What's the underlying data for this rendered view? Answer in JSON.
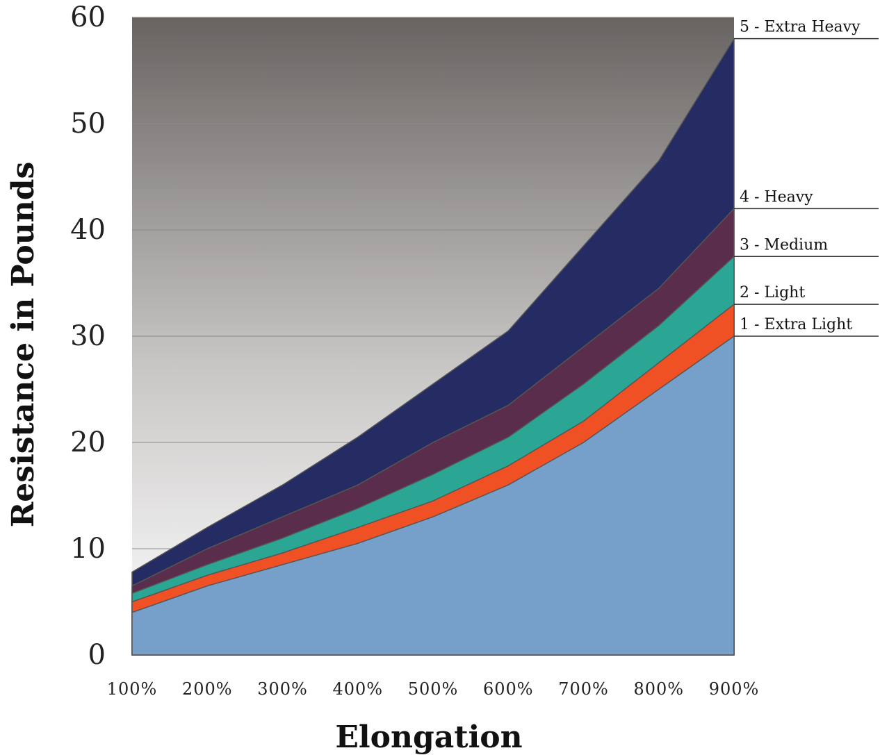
{
  "chart_data": {
    "type": "area",
    "stacked": true,
    "xlabel": "Elongation",
    "ylabel": "Resistance in Pounds",
    "categories": [
      "100%",
      "200%",
      "300%",
      "400%",
      "500%",
      "600%",
      "700%",
      "800%",
      "900%"
    ],
    "ylim": [
      0,
      60
    ],
    "yticks": [
      "0",
      "10",
      "20",
      "30",
      "40",
      "50",
      "60"
    ],
    "grid": true,
    "background": {
      "top": "#686462",
      "bottom": "#ffffff"
    },
    "series": [
      {
        "name": "1 - Extra Light",
        "color": "#769fca",
        "values": [
          4.0,
          6.5,
          8.5,
          10.5,
          13.0,
          16.0,
          20.0,
          25.0,
          30.0
        ]
      },
      {
        "name": "2 - Light",
        "color": "#ef5024",
        "values": [
          5.0,
          7.5,
          9.6,
          12.0,
          14.5,
          17.8,
          22.0,
          27.5,
          33.0
        ]
      },
      {
        "name": "3 - Medium",
        "color": "#2ba695",
        "values": [
          5.8,
          8.5,
          11.0,
          13.8,
          17.0,
          20.5,
          25.5,
          31.0,
          37.5
        ]
      },
      {
        "name": "4 - Heavy",
        "color": "#5b2d4d",
        "values": [
          6.5,
          10.0,
          13.0,
          16.0,
          20.0,
          23.5,
          29.0,
          34.5,
          42.0
        ]
      },
      {
        "name": "5 - Extra Heavy",
        "color": "#252b63",
        "values": [
          7.8,
          12.0,
          16.0,
          20.5,
          25.5,
          30.5,
          38.5,
          46.5,
          58.0
        ]
      }
    ],
    "legend_position": "right"
  }
}
